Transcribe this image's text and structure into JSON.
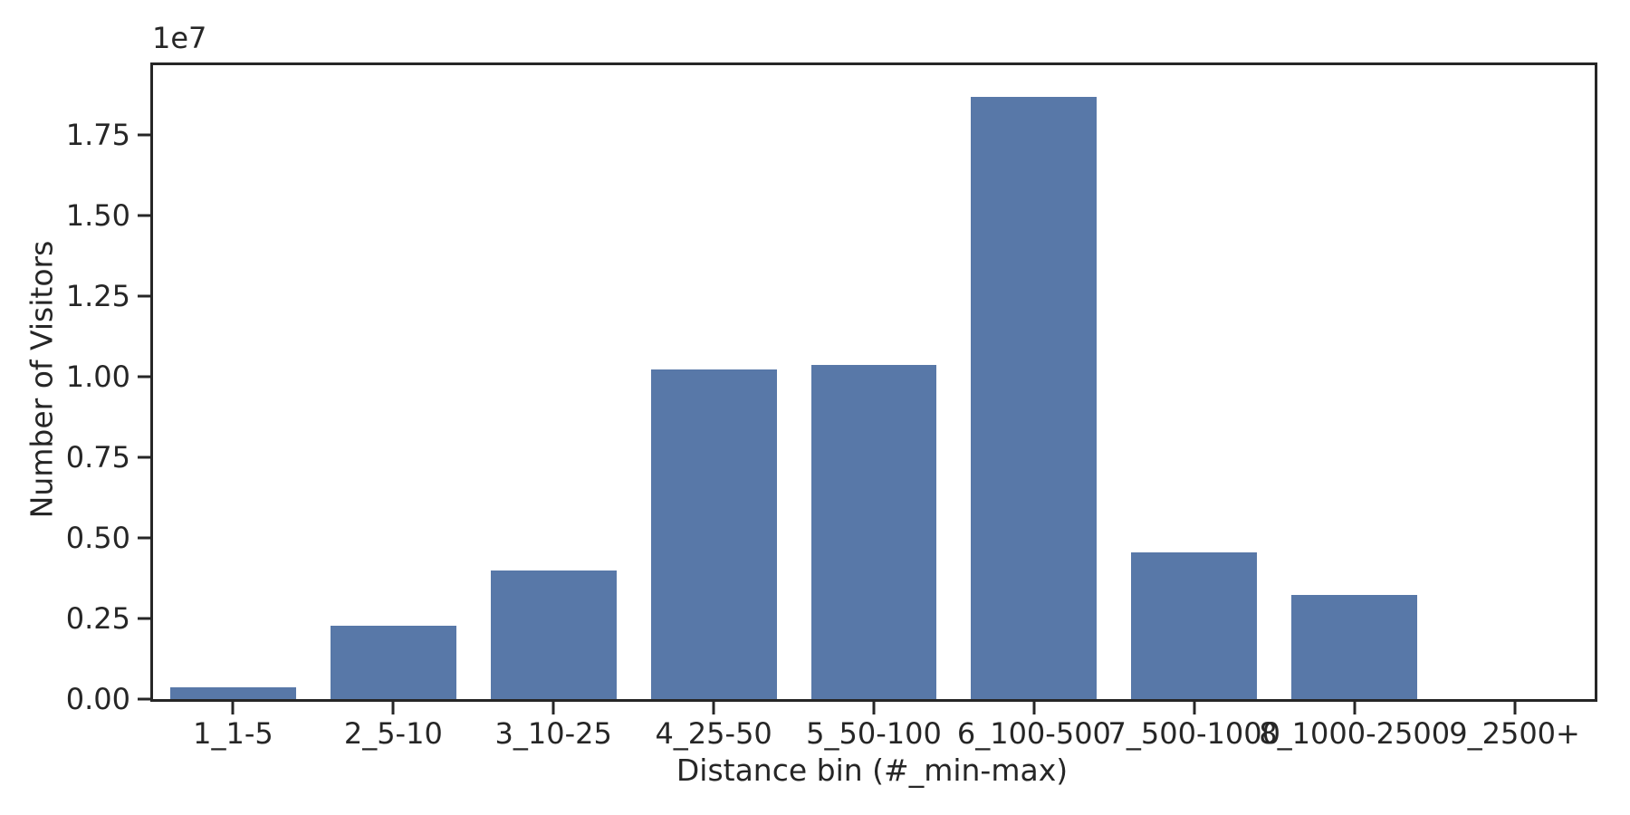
{
  "colors": {
    "bar": "#5878a8",
    "axis": "#262626",
    "text": "#262626",
    "background": "#ffffff"
  },
  "chart_data": {
    "type": "bar",
    "title": "",
    "xlabel": "Distance bin (#_min-max)",
    "ylabel": "Number of Visitors",
    "offset_text": "1e7",
    "categories": [
      "1_1-5",
      "2_5-10",
      "3_10-25",
      "4_25-50",
      "5_50-100",
      "6_100-500",
      "7_500-1000",
      "8_1000-2500",
      "9_2500+"
    ],
    "values": [
      370000,
      2280000,
      4000000,
      10220000,
      10370000,
      18680000,
      4540000,
      3240000,
      0
    ],
    "ylim": [
      0,
      19660000
    ],
    "y_tick_step": 2500000,
    "y_tick_max": 17500000,
    "y_tick_scale": 10000000,
    "y_tick_decimals": 2,
    "bar_width_fraction": 0.785,
    "grid": false,
    "legend": null
  }
}
